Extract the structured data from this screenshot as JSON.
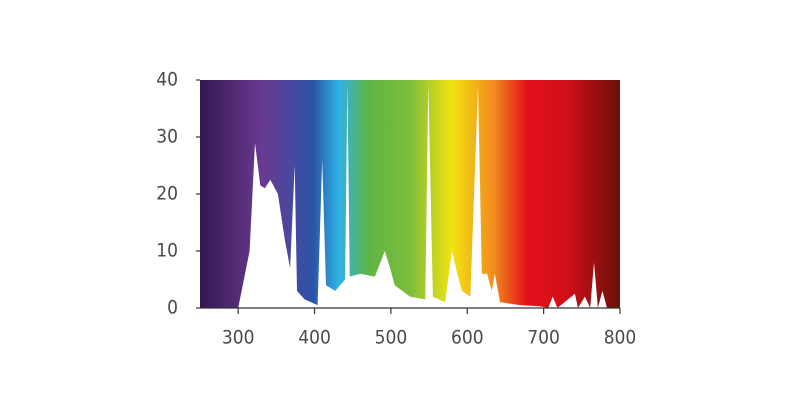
{
  "chart_data": {
    "type": "area",
    "color": "#ffffff",
    "x": [
      300,
      315,
      322,
      329,
      335,
      342,
      352,
      361,
      368,
      374,
      377,
      387,
      404,
      410,
      415,
      427,
      440,
      443,
      446,
      460,
      479,
      492,
      499,
      505,
      525,
      545,
      549,
      555,
      571,
      580,
      587,
      593,
      604,
      614,
      619,
      626,
      632,
      636,
      643,
      669,
      695,
      706,
      712,
      718,
      741,
      745,
      754,
      761,
      766,
      771,
      777,
      783,
      800
    ],
    "values": [
      0,
      10,
      29,
      21.5,
      21,
      22.5,
      20,
      12,
      7,
      25,
      3,
      1.5,
      0.5,
      26,
      4,
      3,
      5,
      39.5,
      5.5,
      6,
      5.5,
      10,
      7,
      4,
      2,
      1.5,
      39.5,
      2,
      1,
      10,
      6,
      3,
      2,
      39,
      6,
      6,
      3,
      6,
      1,
      0.5,
      0.3,
      0,
      2,
      0,
      2.5,
      0,
      2,
      0,
      8,
      0,
      3,
      0,
      0
    ],
    "xlim": [
      250,
      800
    ],
    "ylim": [
      0,
      40
    ],
    "xticks": [
      300,
      400,
      500,
      600,
      700,
      800
    ],
    "yticks": [
      0,
      10,
      20,
      30,
      40
    ]
  }
}
